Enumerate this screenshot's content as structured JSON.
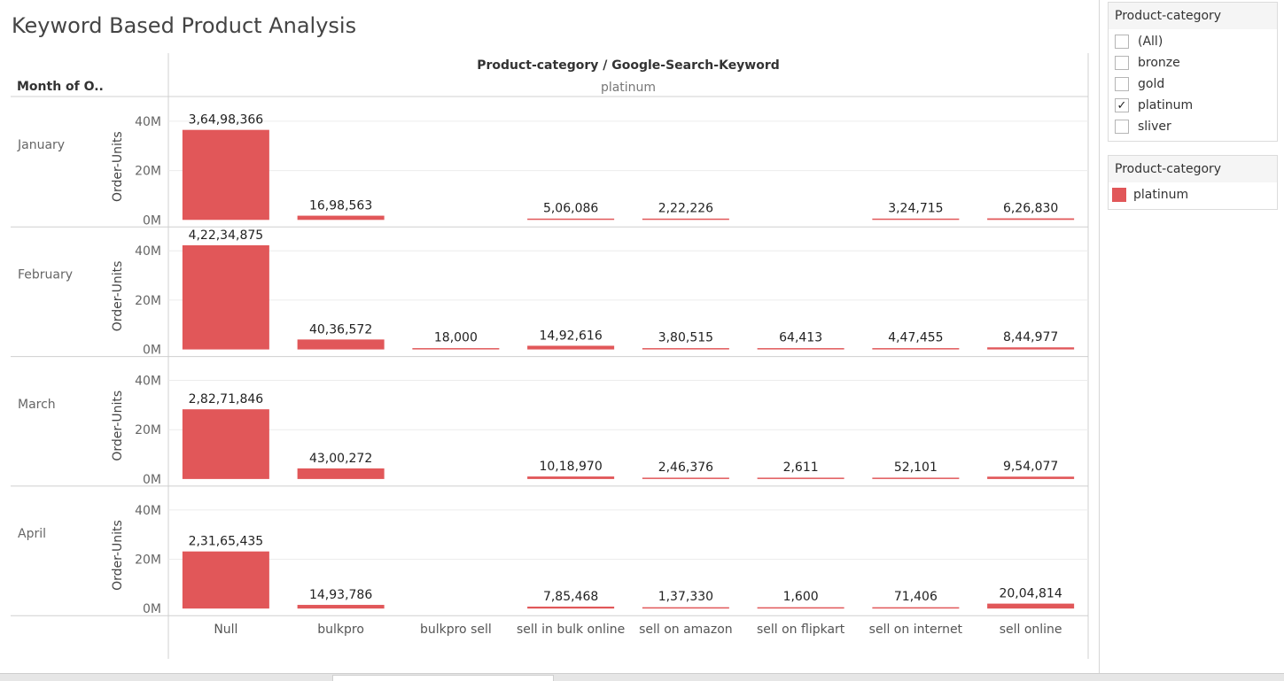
{
  "title": "Keyword Based Product Analysis",
  "header": {
    "row_header": "Month of O..",
    "column_header": "Product-category / Google-Search-Keyword",
    "category_label": "platinum"
  },
  "filter": {
    "title": "Product-category",
    "items": [
      {
        "label": "(All)",
        "checked": false
      },
      {
        "label": "bronze",
        "checked": false
      },
      {
        "label": "gold",
        "checked": false
      },
      {
        "label": "platinum",
        "checked": true
      },
      {
        "label": "sliver",
        "checked": false
      }
    ]
  },
  "legend": {
    "title": "Product-category",
    "items": [
      {
        "label": "platinum",
        "color": "#e15759"
      }
    ]
  },
  "colors": {
    "bar": "#e15759",
    "grid": "#ececec",
    "axis_text": "#666666"
  },
  "chart_data": {
    "type": "bar",
    "ylabel": "Order-Units",
    "ylim": [
      0,
      45000000
    ],
    "yticks": [
      0,
      20000000,
      40000000
    ],
    "ytick_labels": [
      "0M",
      "20M",
      "40M"
    ],
    "grid": true,
    "categories": [
      "Null",
      "bulkpro",
      "bulkpro sell",
      "sell in bulk online",
      "sell on amazon",
      "sell on flipkart",
      "sell on internet",
      "sell online"
    ],
    "rows": [
      {
        "month": "January",
        "values": [
          36498366,
          1698563,
          null,
          506086,
          222226,
          null,
          324715,
          626830
        ],
        "labels": [
          "3,64,98,366",
          "16,98,563",
          "",
          "5,06,086",
          "2,22,226",
          "",
          "3,24,715",
          "6,26,830"
        ]
      },
      {
        "month": "February",
        "values": [
          42234875,
          4036572,
          18000,
          1492616,
          380515,
          64413,
          447455,
          844977
        ],
        "labels": [
          "4,22,34,875",
          "40,36,572",
          "18,000",
          "14,92,616",
          "3,80,515",
          "64,413",
          "4,47,455",
          "8,44,977"
        ]
      },
      {
        "month": "March",
        "values": [
          28271846,
          4300272,
          null,
          1018970,
          246376,
          2611,
          52101,
          954077
        ],
        "labels": [
          "2,82,71,846",
          "43,00,272",
          "",
          "10,18,970",
          "2,46,376",
          "2,611",
          "52,101",
          "9,54,077"
        ]
      },
      {
        "month": "April",
        "values": [
          23165435,
          1493786,
          null,
          785468,
          137330,
          1600,
          71406,
          2004814
        ],
        "labels": [
          "2,31,65,435",
          "14,93,786",
          "",
          "7,85,468",
          "1,37,330",
          "1,600",
          "71,406",
          "20,04,814"
        ]
      }
    ]
  }
}
